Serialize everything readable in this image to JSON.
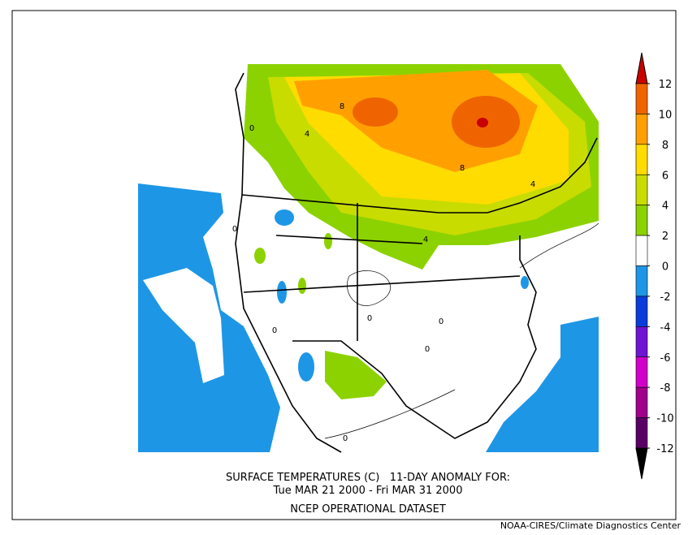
{
  "title": [
    "SURFACE TEMPERATURES (C)   11-DAY ANOMALY FOR:",
    "Tue MAR 21 2000 - Fri MAR 31 2000",
    "NCEP OPERATIONAL DATASET"
  ],
  "credit": "NOAA-CIRES/Climate Diagnostics Center",
  "colorbar": {
    "levels": [
      12,
      10,
      8,
      6,
      4,
      2,
      0,
      -2,
      -4,
      -6,
      -8,
      -10,
      -12
    ],
    "colors": [
      "#c80000",
      "#f06400",
      "#ffa000",
      "#ffdc00",
      "#c8dc00",
      "#8cd200",
      "#ffffff",
      "#1e96e6",
      "#0a3cdc",
      "#6e14d2",
      "#d200c8",
      "#a0008c",
      "#5a0064"
    ]
  },
  "contour_labels": [
    8,
    4,
    8,
    4,
    4,
    0,
    0,
    0,
    0,
    0,
    0,
    0
  ]
}
